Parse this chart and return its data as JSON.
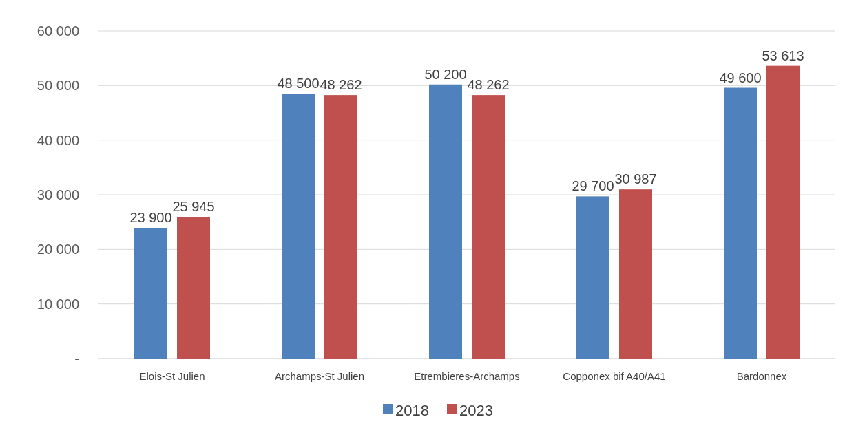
{
  "chart_data": {
    "type": "bar",
    "categories": [
      "Elois-St Julien",
      "Archamps-St Julien",
      "Etrembieres-Archamps",
      "Copponex bif A40/A41",
      "Bardonnex"
    ],
    "series": [
      {
        "name": "2018",
        "color": "#4f81bd",
        "values": [
          23900,
          48500,
          50200,
          29700,
          49600
        ],
        "value_labels": [
          "23 900",
          "48 500",
          "50 200",
          "29 700",
          "49 600"
        ]
      },
      {
        "name": "2023",
        "color": "#c0504d",
        "values": [
          25945,
          48262,
          48262,
          30987,
          53613
        ],
        "value_labels": [
          "25 945",
          "48 262",
          "48 262",
          "30 987",
          "53 613"
        ]
      }
    ],
    "ylim": [
      0,
      60000
    ],
    "yticks": [
      {
        "value": 0,
        "label": "-"
      },
      {
        "value": 10000,
        "label": "10 000"
      },
      {
        "value": 20000,
        "label": "20 000"
      },
      {
        "value": 30000,
        "label": "30 000"
      },
      {
        "value": 40000,
        "label": "40 000"
      },
      {
        "value": 50000,
        "label": "50 000"
      },
      {
        "value": 60000,
        "label": "60 000"
      }
    ],
    "grid": "y",
    "legend": "bottom"
  }
}
